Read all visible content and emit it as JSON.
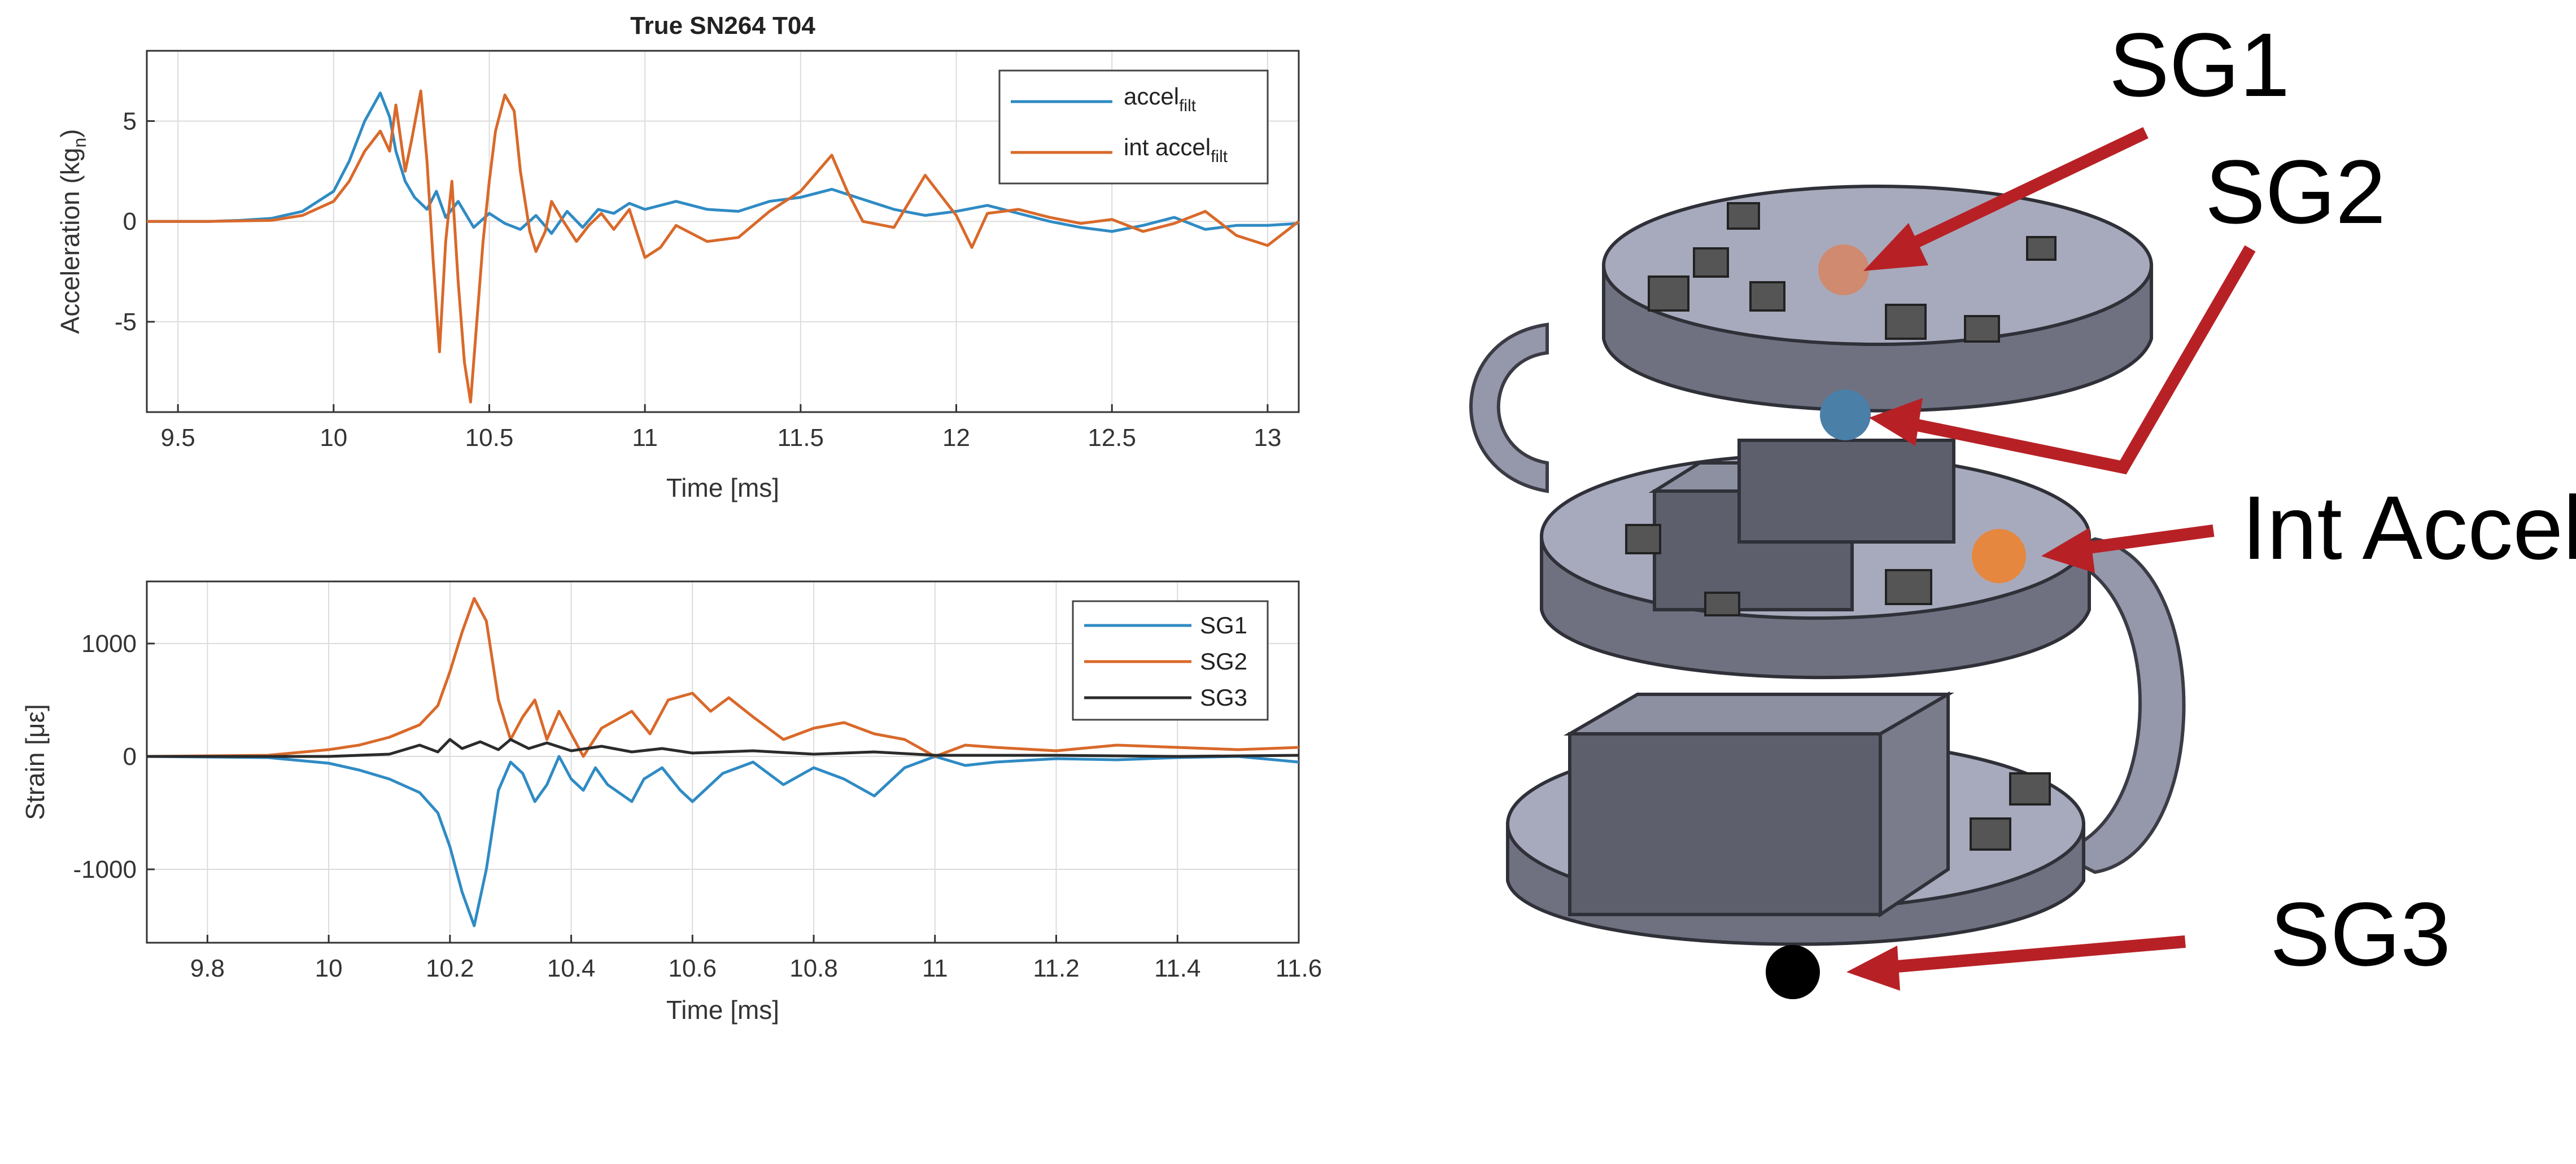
{
  "chart_data": [
    {
      "type": "line",
      "title": "True SN264 T04",
      "xlabel": "Time [ms]",
      "ylabel_main": "Acceleration (kg",
      "ylabel_sub": "n",
      "ylabel_close": ")",
      "xlim": [
        9.4,
        13.1
      ],
      "ylim": [
        -9.5,
        8.5
      ],
      "xticks": [
        9.5,
        10,
        10.5,
        11,
        11.5,
        12,
        12.5,
        13
      ],
      "xtick_labels": [
        "9.5",
        "10",
        "10.5",
        "11",
        "11.5",
        "12",
        "12.5",
        "13"
      ],
      "yticks": [
        -5,
        0,
        5
      ],
      "ytick_labels": [
        "-5",
        "0",
        "5"
      ],
      "grid": true,
      "legend_position": "top-right",
      "series": [
        {
          "name": "accel",
          "name_sub": "filt",
          "color": "#2f8bc4",
          "points": [
            [
              9.4,
              0
            ],
            [
              9.6,
              0
            ],
            [
              9.7,
              0.05
            ],
            [
              9.8,
              0.15
            ],
            [
              9.9,
              0.5
            ],
            [
              10.0,
              1.5
            ],
            [
              10.05,
              3
            ],
            [
              10.1,
              5
            ],
            [
              10.15,
              6.4
            ],
            [
              10.18,
              5.2
            ],
            [
              10.2,
              3.5
            ],
            [
              10.23,
              2
            ],
            [
              10.26,
              1.2
            ],
            [
              10.3,
              0.6
            ],
            [
              10.33,
              1.5
            ],
            [
              10.36,
              0.2
            ],
            [
              10.4,
              1.0
            ],
            [
              10.45,
              -0.3
            ],
            [
              10.5,
              0.4
            ],
            [
              10.55,
              -0.1
            ],
            [
              10.6,
              -0.4
            ],
            [
              10.65,
              0.3
            ],
            [
              10.7,
              -0.6
            ],
            [
              10.75,
              0.5
            ],
            [
              10.8,
              -0.3
            ],
            [
              10.85,
              0.6
            ],
            [
              10.9,
              0.4
            ],
            [
              10.95,
              0.9
            ],
            [
              11.0,
              0.6
            ],
            [
              11.1,
              1.0
            ],
            [
              11.2,
              0.6
            ],
            [
              11.3,
              0.5
            ],
            [
              11.4,
              1.0
            ],
            [
              11.5,
              1.2
            ],
            [
              11.6,
              1.6
            ],
            [
              11.7,
              1.1
            ],
            [
              11.8,
              0.6
            ],
            [
              11.9,
              0.3
            ],
            [
              12.0,
              0.5
            ],
            [
              12.1,
              0.8
            ],
            [
              12.2,
              0.4
            ],
            [
              12.3,
              0
            ],
            [
              12.4,
              -0.3
            ],
            [
              12.5,
              -0.5
            ],
            [
              12.6,
              -0.2
            ],
            [
              12.7,
              0.2
            ],
            [
              12.8,
              -0.4
            ],
            [
              12.9,
              -0.2
            ],
            [
              13.0,
              -0.2
            ],
            [
              13.1,
              -0.1
            ]
          ]
        },
        {
          "name": "int accel",
          "name_sub": "filt",
          "color": "#d9692a",
          "points": [
            [
              9.4,
              0
            ],
            [
              9.6,
              0
            ],
            [
              9.8,
              0.05
            ],
            [
              9.9,
              0.3
            ],
            [
              10.0,
              1.0
            ],
            [
              10.05,
              2
            ],
            [
              10.1,
              3.5
            ],
            [
              10.15,
              4.5
            ],
            [
              10.18,
              3.5
            ],
            [
              10.2,
              5.8
            ],
            [
              10.23,
              2.5
            ],
            [
              10.25,
              4
            ],
            [
              10.28,
              6.5
            ],
            [
              10.3,
              3
            ],
            [
              10.32,
              -2
            ],
            [
              10.34,
              -6.5
            ],
            [
              10.36,
              -1
            ],
            [
              10.38,
              2
            ],
            [
              10.4,
              -3
            ],
            [
              10.42,
              -7
            ],
            [
              10.44,
              -9
            ],
            [
              10.46,
              -5
            ],
            [
              10.48,
              -1
            ],
            [
              10.5,
              2
            ],
            [
              10.52,
              4.5
            ],
            [
              10.55,
              6.3
            ],
            [
              10.58,
              5.5
            ],
            [
              10.6,
              2.5
            ],
            [
              10.63,
              -0.5
            ],
            [
              10.65,
              -1.5
            ],
            [
              10.68,
              -0.5
            ],
            [
              10.7,
              1
            ],
            [
              10.73,
              0.2
            ],
            [
              10.78,
              -1
            ],
            [
              10.82,
              -0.2
            ],
            [
              10.86,
              0.4
            ],
            [
              10.9,
              -0.4
            ],
            [
              10.95,
              0.6
            ],
            [
              11.0,
              -1.8
            ],
            [
              11.05,
              -1.3
            ],
            [
              11.1,
              -0.2
            ],
            [
              11.2,
              -1.0
            ],
            [
              11.3,
              -0.8
            ],
            [
              11.4,
              0.5
            ],
            [
              11.5,
              1.5
            ],
            [
              11.6,
              3.3
            ],
            [
              11.65,
              1.5
            ],
            [
              11.7,
              0
            ],
            [
              11.8,
              -0.3
            ],
            [
              11.9,
              2.3
            ],
            [
              12.0,
              0.3
            ],
            [
              12.05,
              -1.3
            ],
            [
              12.1,
              0.4
            ],
            [
              12.2,
              0.6
            ],
            [
              12.3,
              0.2
            ],
            [
              12.4,
              -0.1
            ],
            [
              12.5,
              0.1
            ],
            [
              12.6,
              -0.5
            ],
            [
              12.7,
              -0.1
            ],
            [
              12.8,
              0.5
            ],
            [
              12.9,
              -0.7
            ],
            [
              13.0,
              -1.2
            ],
            [
              13.05,
              -0.6
            ],
            [
              13.1,
              0
            ]
          ]
        }
      ]
    },
    {
      "type": "line",
      "title": "",
      "xlabel": "Time [ms]",
      "ylabel_main": "Strain [με]",
      "xlim": [
        9.7,
        11.6
      ],
      "ylim": [
        -1650,
        1550
      ],
      "xticks": [
        9.8,
        10,
        10.2,
        10.4,
        10.6,
        10.8,
        11,
        11.2,
        11.4,
        11.6
      ],
      "xtick_labels": [
        "9.8",
        "10",
        "10.2",
        "10.4",
        "10.6",
        "10.8",
        "11",
        "11.2",
        "11.4",
        "11.6"
      ],
      "yticks": [
        -1000,
        0,
        1000
      ],
      "ytick_labels": [
        "-1000",
        "0",
        "1000"
      ],
      "grid": true,
      "legend_position": "top-right",
      "series": [
        {
          "name": "SG1",
          "color": "#2f8bc4",
          "points": [
            [
              9.7,
              0
            ],
            [
              9.9,
              -10
            ],
            [
              10.0,
              -60
            ],
            [
              10.05,
              -120
            ],
            [
              10.1,
              -200
            ],
            [
              10.15,
              -320
            ],
            [
              10.18,
              -500
            ],
            [
              10.2,
              -800
            ],
            [
              10.22,
              -1200
            ],
            [
              10.24,
              -1500
            ],
            [
              10.26,
              -1000
            ],
            [
              10.28,
              -300
            ],
            [
              10.3,
              -50
            ],
            [
              10.32,
              -150
            ],
            [
              10.34,
              -400
            ],
            [
              10.36,
              -250
            ],
            [
              10.38,
              0
            ],
            [
              10.4,
              -200
            ],
            [
              10.42,
              -300
            ],
            [
              10.44,
              -100
            ],
            [
              10.46,
              -250
            ],
            [
              10.5,
              -400
            ],
            [
              10.52,
              -200
            ],
            [
              10.55,
              -100
            ],
            [
              10.58,
              -300
            ],
            [
              10.6,
              -400
            ],
            [
              10.65,
              -150
            ],
            [
              10.7,
              -50
            ],
            [
              10.75,
              -250
            ],
            [
              10.8,
              -100
            ],
            [
              10.85,
              -200
            ],
            [
              10.9,
              -350
            ],
            [
              10.95,
              -100
            ],
            [
              11.0,
              0
            ],
            [
              11.05,
              -80
            ],
            [
              11.1,
              -50
            ],
            [
              11.2,
              -20
            ],
            [
              11.3,
              -30
            ],
            [
              11.4,
              -10
            ],
            [
              11.5,
              0
            ],
            [
              11.6,
              -50
            ]
          ]
        },
        {
          "name": "SG2",
          "color": "#d9692a",
          "points": [
            [
              9.7,
              0
            ],
            [
              9.9,
              10
            ],
            [
              10.0,
              60
            ],
            [
              10.05,
              100
            ],
            [
              10.1,
              170
            ],
            [
              10.15,
              280
            ],
            [
              10.18,
              450
            ],
            [
              10.2,
              750
            ],
            [
              10.22,
              1100
            ],
            [
              10.24,
              1400
            ],
            [
              10.26,
              1200
            ],
            [
              10.28,
              500
            ],
            [
              10.3,
              150
            ],
            [
              10.32,
              350
            ],
            [
              10.34,
              500
            ],
            [
              10.36,
              150
            ],
            [
              10.38,
              400
            ],
            [
              10.4,
              200
            ],
            [
              10.42,
              0
            ],
            [
              10.45,
              250
            ],
            [
              10.5,
              400
            ],
            [
              10.53,
              200
            ],
            [
              10.56,
              500
            ],
            [
              10.6,
              560
            ],
            [
              10.63,
              400
            ],
            [
              10.66,
              520
            ],
            [
              10.7,
              350
            ],
            [
              10.75,
              150
            ],
            [
              10.8,
              250
            ],
            [
              10.85,
              300
            ],
            [
              10.9,
              200
            ],
            [
              10.95,
              150
            ],
            [
              11.0,
              0
            ],
            [
              11.05,
              100
            ],
            [
              11.1,
              80
            ],
            [
              11.2,
              50
            ],
            [
              11.3,
              100
            ],
            [
              11.4,
              80
            ],
            [
              11.5,
              60
            ],
            [
              11.6,
              80
            ]
          ]
        },
        {
          "name": "SG3",
          "color": "#2b2b2b",
          "points": [
            [
              9.7,
              0
            ],
            [
              10.0,
              0
            ],
            [
              10.1,
              20
            ],
            [
              10.15,
              100
            ],
            [
              10.18,
              40
            ],
            [
              10.2,
              150
            ],
            [
              10.22,
              70
            ],
            [
              10.25,
              130
            ],
            [
              10.28,
              60
            ],
            [
              10.3,
              150
            ],
            [
              10.33,
              70
            ],
            [
              10.36,
              120
            ],
            [
              10.4,
              50
            ],
            [
              10.45,
              90
            ],
            [
              10.5,
              40
            ],
            [
              10.55,
              70
            ],
            [
              10.6,
              30
            ],
            [
              10.7,
              50
            ],
            [
              10.8,
              20
            ],
            [
              10.9,
              40
            ],
            [
              11.0,
              10
            ],
            [
              11.2,
              10
            ],
            [
              11.4,
              0
            ],
            [
              11.6,
              10
            ]
          ]
        }
      ]
    }
  ],
  "annotations": {
    "sg1": "SG1",
    "sg2": "SG2",
    "int_accel": "Int Accel",
    "sg3": "SG3"
  },
  "marker_colors": {
    "sg1": "#cf8a70",
    "sg2": "#4a7fa8",
    "int_accel": "#e6873f",
    "sg3": "#000000",
    "arrow": "#b72126"
  }
}
